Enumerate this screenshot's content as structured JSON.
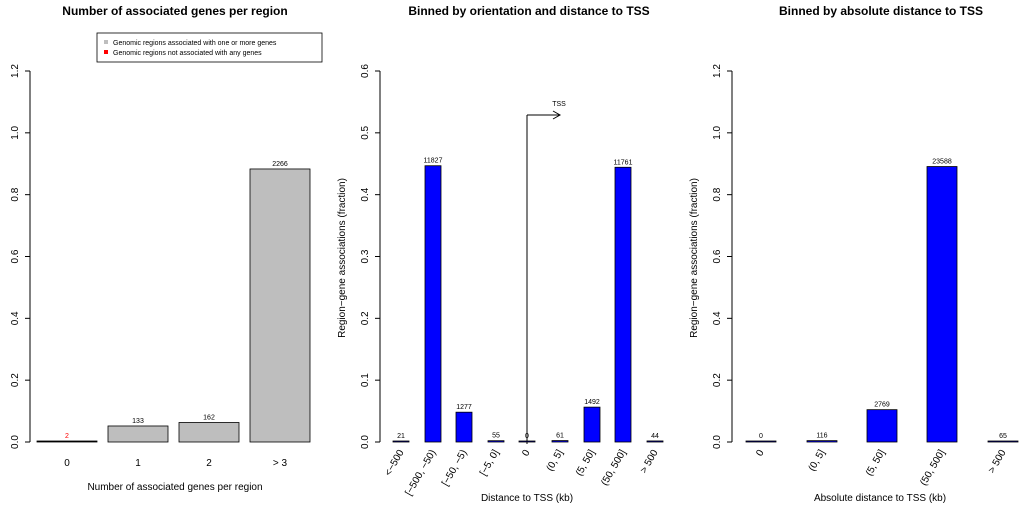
{
  "chart_data": [
    {
      "type": "bar",
      "title": "Number of associated genes per region",
      "xlabel": "Number of associated genes per region",
      "ylabel": "",
      "ylim": [
        0,
        1.2
      ],
      "yticks": [
        "0.0",
        "0.2",
        "0.4",
        "0.6",
        "0.8",
        "1.0",
        "1.2"
      ],
      "categories": [
        "0",
        "1",
        "2",
        "> 3"
      ],
      "values": [
        0.0008,
        0.0518,
        0.0631,
        0.8831
      ],
      "labels": [
        "2",
        "133",
        "162",
        "2266"
      ],
      "label_colors": [
        "#ff0000",
        "#000000",
        "#000000",
        "#000000"
      ],
      "bar_colors": [
        "#000000",
        "#bebebe",
        "#bebebe",
        "#bebebe"
      ],
      "legend": [
        {
          "label": "Genomic regions associated with one or more genes",
          "color": "#bebebe"
        },
        {
          "label": "Genomic regions not associated with any genes",
          "color": "#ff0000"
        }
      ]
    },
    {
      "type": "bar",
      "title": "Binned by orientation and distance to TSS",
      "xlabel": "Distance to TSS (kb)",
      "ylabel": "Region−gene associations (fraction)",
      "ylim": [
        0,
        0.6
      ],
      "yticks": [
        "0.0",
        "0.1",
        "0.2",
        "0.3",
        "0.4",
        "0.5",
        "0.6"
      ],
      "categories": [
        "<−500",
        "[−500, −50)",
        "[−50, −5)",
        "[−5, 0]",
        "0",
        "(0, 5]",
        "(5, 50]",
        "(50, 500]",
        "> 500"
      ],
      "values": [
        0.0008,
        0.4468,
        0.0482,
        0.0021,
        0.0,
        0.0023,
        0.0564,
        0.4443,
        0.0017
      ],
      "labels": [
        "21",
        "11827",
        "1277",
        "55",
        "0",
        "61",
        "1492",
        "11761",
        "44"
      ],
      "bar_color": "#0000ff",
      "annotation": "TSS"
    },
    {
      "type": "bar",
      "title": "Binned by absolute distance to TSS",
      "xlabel": "Absolute distance to TSS (kb)",
      "ylabel": "Region−gene associations (fraction)",
      "ylim": [
        0,
        1.2
      ],
      "yticks": [
        "0.0",
        "0.2",
        "0.4",
        "0.6",
        "0.8",
        "1.0",
        "1.2"
      ],
      "categories": [
        "0",
        "(0, 5]",
        "(5, 50]",
        "(50, 500]",
        "> 500"
      ],
      "values": [
        0.0,
        0.0044,
        0.1046,
        0.891,
        0.0025
      ],
      "labels": [
        "0",
        "116",
        "2769",
        "23588",
        "65"
      ],
      "bar_color": "#0000ff"
    }
  ]
}
